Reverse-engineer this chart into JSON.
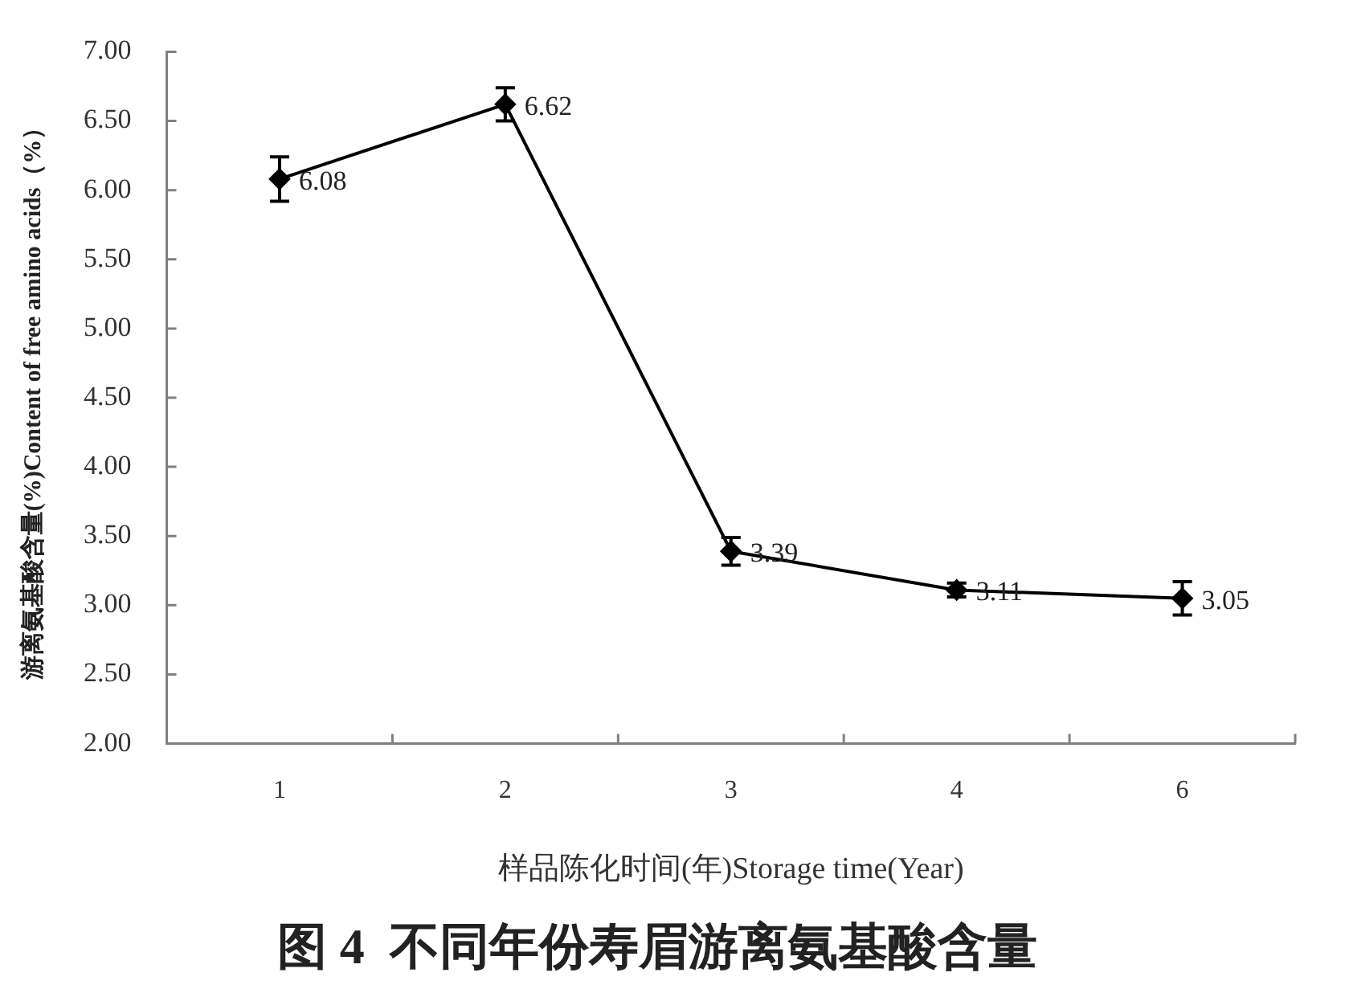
{
  "chart_data": {
    "type": "line",
    "title": "图 4  不同年份寿眉游离氨基酸含量",
    "xlabel": "样品陈化时间(年)Storage time(Year)",
    "ylabel": "游离氨基酸含量(%)Content of free amino acids（%）",
    "categories": [
      "1",
      "2",
      "3",
      "4",
      "6"
    ],
    "series": [
      {
        "color": "#000000",
        "values": [
          6.08,
          6.62,
          3.39,
          3.11,
          3.05
        ],
        "errors": [
          0.16,
          0.12,
          0.1,
          0.05,
          0.12
        ]
      }
    ],
    "ylim": [
      2,
      7
    ],
    "yticks": [
      {
        "value": 2,
        "label": "2.00"
      },
      {
        "value": 2.5,
        "label": "2.50"
      },
      {
        "value": 3,
        "label": "3.00"
      },
      {
        "value": 3.5,
        "label": "3.50"
      },
      {
        "value": 4,
        "label": "4.00"
      },
      {
        "value": 4.5,
        "label": "4.50"
      },
      {
        "value": 5,
        "label": "5.00"
      },
      {
        "value": 5.5,
        "label": "5.50"
      },
      {
        "value": 6,
        "label": "6.00"
      },
      {
        "value": 6.5,
        "label": "6.50"
      },
      {
        "value": 7,
        "label": "7.00"
      }
    ],
    "grid": false,
    "legend": false,
    "marker": "diamond",
    "line_style": "solid",
    "data_labels": true
  }
}
